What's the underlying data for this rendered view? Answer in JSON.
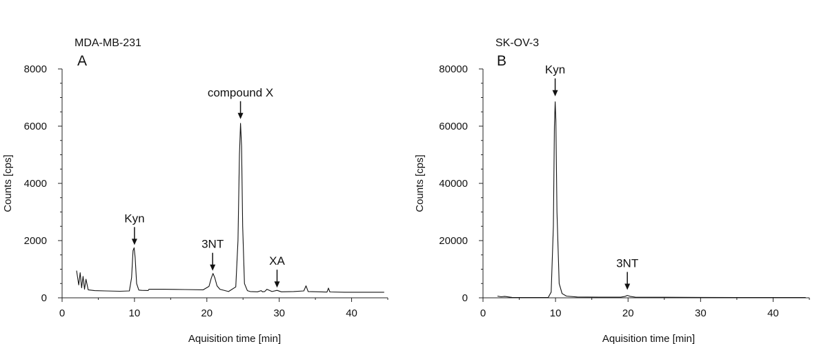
{
  "chart_data": [
    {
      "type": "line",
      "title": "MDA-MB-231",
      "panel_label": "A",
      "xlabel": "Aquisition time [min]",
      "ylabel": "Counts [cps]",
      "xlim": [
        0,
        45
      ],
      "ylim": [
        0,
        8000
      ],
      "xticks": [
        0,
        10,
        20,
        30,
        40
      ],
      "yticks": [
        0,
        2000,
        4000,
        6000,
        8000
      ],
      "grid": false,
      "series": [
        {
          "x": [
            2.0,
            2.3,
            2.5,
            2.7,
            2.9,
            3.1,
            3.3,
            3.6,
            4.5,
            6.0,
            8.0,
            9.3,
            9.6,
            9.8,
            9.95,
            10.1,
            10.3,
            10.6,
            11.0,
            11.9,
            12.0,
            14.0,
            17.0,
            19.5,
            20.3,
            20.6,
            20.85,
            21.1,
            21.4,
            21.8,
            23.0,
            24.0,
            24.3,
            24.5,
            24.65,
            24.8,
            24.95,
            25.2,
            25.6,
            26.0,
            27.0,
            27.5,
            27.7,
            28.0,
            28.3,
            29.0,
            29.7,
            30.3,
            32.0,
            33.4,
            33.7,
            34.0,
            35.5,
            36.6,
            36.8,
            37.0,
            39.0,
            42.0,
            44.5
          ],
          "y": [
            950,
            450,
            880,
            350,
            750,
            300,
            650,
            280,
            250,
            240,
            230,
            240,
            700,
            1650,
            1750,
            1400,
            500,
            270,
            260,
            255,
            300,
            300,
            290,
            280,
            400,
            680,
            850,
            700,
            420,
            300,
            220,
            380,
            2000,
            5000,
            6100,
            5300,
            2500,
            500,
            250,
            220,
            210,
            250,
            210,
            220,
            300,
            220,
            260,
            210,
            220,
            240,
            420,
            220,
            210,
            200,
            340,
            205,
            195,
            195,
            195
          ]
        }
      ],
      "annotations": [
        {
          "text": "Kyn",
          "x": 10,
          "y": 1750
        },
        {
          "text": "3NT",
          "x": 20.8,
          "y": 850
        },
        {
          "text": "compound X",
          "x": 24.65,
          "y": 6150
        },
        {
          "text": "XA",
          "x": 29.7,
          "y": 260
        }
      ]
    },
    {
      "type": "line",
      "title": "SK-OV-3",
      "panel_label": "B",
      "xlabel": "Aquisition time [min]",
      "ylabel": "Counts [cps]",
      "xlim": [
        0,
        45
      ],
      "ylim": [
        0,
        80000
      ],
      "xticks": [
        0,
        10,
        20,
        30,
        40
      ],
      "yticks": [
        0,
        20000,
        40000,
        60000,
        80000
      ],
      "grid": false,
      "series": [
        {
          "x": [
            2.0,
            2.5,
            3.0,
            4.0,
            6.0,
            8.0,
            9.0,
            9.4,
            9.7,
            9.85,
            9.95,
            10.05,
            10.2,
            10.5,
            10.9,
            11.5,
            13.0,
            16.0,
            19.0,
            19.6,
            19.9,
            20.3,
            21.0,
            25.0,
            30.0,
            35.0,
            40.0,
            44.5
          ],
          "y": [
            600,
            350,
            500,
            150,
            100,
            100,
            150,
            2000,
            25000,
            60000,
            68500,
            62000,
            30000,
            5000,
            1500,
            600,
            300,
            250,
            250,
            500,
            850,
            500,
            250,
            200,
            150,
            100,
            100,
            100
          ]
        }
      ],
      "annotations": [
        {
          "text": "Kyn",
          "x": 9.95,
          "y": 68500
        },
        {
          "text": "3NT",
          "x": 19.9,
          "y": 850
        }
      ]
    }
  ]
}
